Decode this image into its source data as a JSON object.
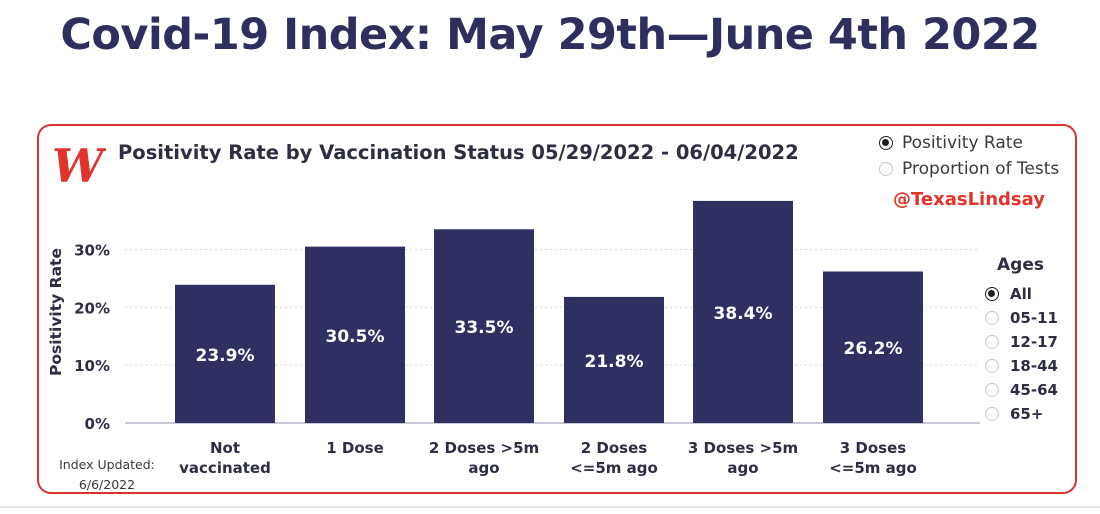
{
  "headline": "Covid-19 Index: May 29th—June 4th 2022",
  "chart": {
    "title": "Positivity Rate by Vaccination Status 05/29/2022 - 06/04/2022",
    "handle": "@TexasLindsay"
  },
  "metric_options": [
    {
      "label": "Positivity Rate",
      "selected": true
    },
    {
      "label": "Proportion of Tests",
      "selected": false
    }
  ],
  "ages": {
    "title": "Ages",
    "options": [
      {
        "label": "All",
        "selected": true
      },
      {
        "label": "05-11",
        "selected": false
      },
      {
        "label": "12-17",
        "selected": false
      },
      {
        "label": "18-44",
        "selected": false
      },
      {
        "label": "45-64",
        "selected": false
      },
      {
        "label": "65+",
        "selected": false
      }
    ]
  },
  "updated": {
    "label": "Index Updated:",
    "date": "6/6/2022"
  },
  "colors": {
    "bar": "#2f3062",
    "accent": "#e0342a",
    "headline": "#2e2f5e"
  },
  "icons": {
    "logo": "walgreens-logo-icon"
  },
  "chart_data": {
    "type": "bar",
    "title": "Positivity Rate by Vaccination Status 05/29/2022 - 06/04/2022",
    "ylabel": "Positivity Rate",
    "xlabel": "",
    "ylim": [
      0,
      40
    ],
    "yticks": [
      0,
      10,
      20,
      30
    ],
    "ytick_labels": [
      "0%",
      "10%",
      "20%",
      "30%"
    ],
    "grid": true,
    "categories": [
      [
        "Not",
        "vaccinated"
      ],
      [
        "1 Dose"
      ],
      [
        "2 Doses >5m",
        "ago"
      ],
      [
        "2 Doses",
        "<=5m ago"
      ],
      [
        "3 Doses >5m",
        "ago"
      ],
      [
        "3 Doses",
        "<=5m ago"
      ]
    ],
    "values": [
      23.9,
      30.5,
      33.5,
      21.8,
      38.4,
      26.2
    ],
    "data_labels": [
      "23.9%",
      "30.5%",
      "33.5%",
      "21.8%",
      "38.4%",
      "26.2%"
    ]
  }
}
